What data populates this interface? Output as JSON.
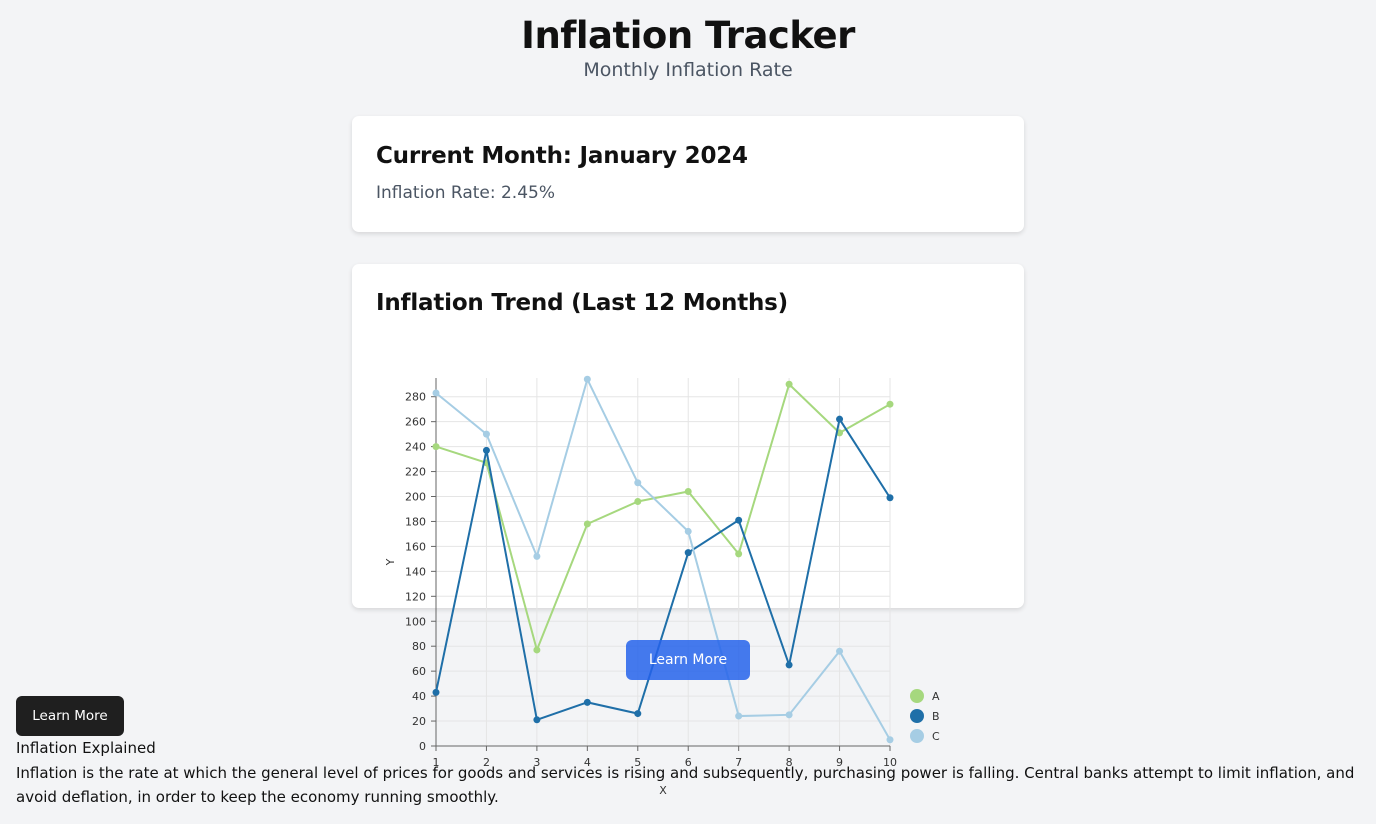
{
  "header": {
    "title": "Inflation Tracker",
    "subtitle": "Monthly Inflation Rate"
  },
  "current": {
    "heading": "Current Month: January 2024",
    "rate_text": "Inflation Rate: 2.45%"
  },
  "trend": {
    "heading": "Inflation Trend (Last 12 Months)"
  },
  "buttons": {
    "learn_more_blue": "Learn More",
    "learn_more_dark": "Learn More"
  },
  "explained": {
    "title": "Inflation Explained",
    "body": "Inflation is the rate at which the general level of prices for goods and services is rising and subsequently, purchasing power is falling. Central banks attempt to limit inflation, and avoid deflation, in order to keep the economy running smoothly."
  },
  "colors": {
    "blue_button": "#2563eb",
    "dark_button": "#1f1f1f",
    "background": "#f3f4f6"
  },
  "chart_data": {
    "type": "line",
    "x": [
      1,
      2,
      3,
      4,
      5,
      6,
      7,
      8,
      9,
      10
    ],
    "xlabel": "X",
    "ylabel": "Y",
    "xlim": [
      1,
      10
    ],
    "ylim": [
      0,
      295
    ],
    "yticks": [
      0,
      20,
      40,
      60,
      80,
      100,
      120,
      140,
      160,
      180,
      200,
      220,
      240,
      260,
      280
    ],
    "xticks": [
      1,
      2,
      3,
      4,
      5,
      6,
      7,
      8,
      9,
      10
    ],
    "grid": true,
    "legend_position": "bottom-right",
    "series": [
      {
        "name": "A",
        "color": "#a6d87e",
        "values": [
          240,
          227,
          77,
          178,
          196,
          204,
          154,
          290,
          251,
          274
        ]
      },
      {
        "name": "B",
        "color": "#1f6fa8",
        "values": [
          43,
          237,
          21,
          35,
          26,
          155,
          181,
          65,
          262,
          199
        ]
      },
      {
        "name": "C",
        "color": "#a6cde4",
        "values": [
          283,
          250,
          152,
          294,
          211,
          172,
          24,
          25,
          76,
          5
        ]
      }
    ]
  }
}
